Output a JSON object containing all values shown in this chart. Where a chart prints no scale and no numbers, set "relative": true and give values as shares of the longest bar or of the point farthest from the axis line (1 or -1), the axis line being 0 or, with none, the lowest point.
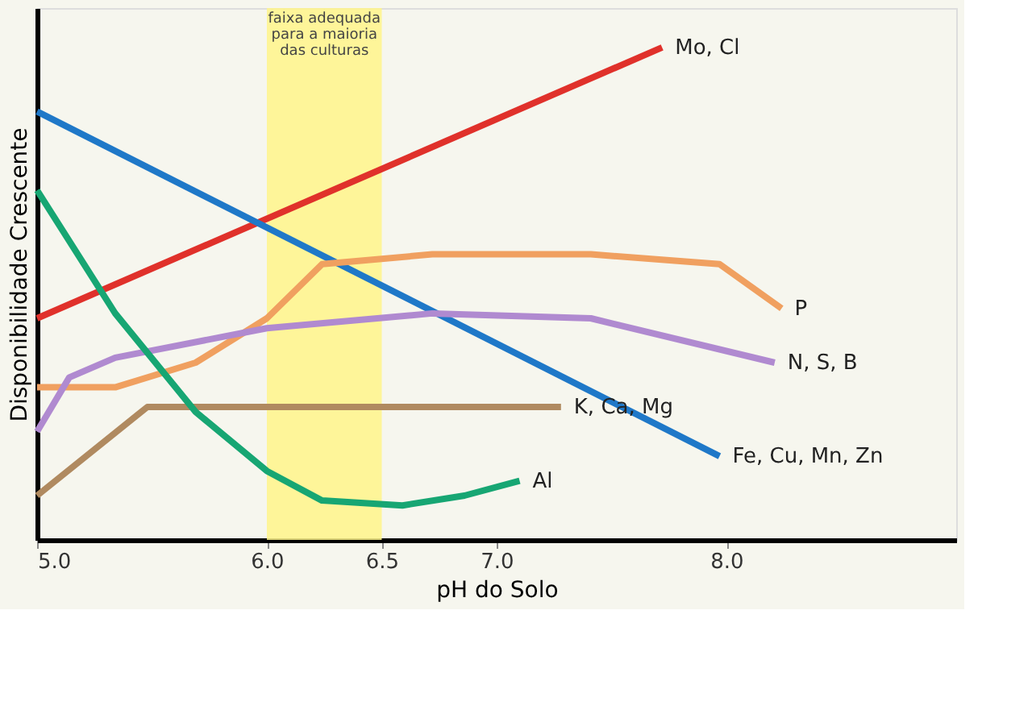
{
  "chart_data": {
    "type": "line",
    "relative": true,
    "xlabel": "pH do Solo",
    "ylabel": "Disponibilidade Crescente",
    "xlim": [
      5.0,
      9.0
    ],
    "xticks": [
      {
        "value": 5,
        "label": "5.0"
      },
      {
        "value": 6,
        "label": "6.0"
      },
      {
        "value": 6.5,
        "label": "6.5"
      },
      {
        "value": 7,
        "label": "7.0"
      },
      {
        "value": 8,
        "label": "8.0"
      }
    ],
    "tick_labels": "x",
    "grid": false,
    "marker": "none",
    "line_style": "solid",
    "bands": [
      {
        "axis": "x",
        "from": 6.0,
        "to": 6.5,
        "label": "faixa adequada para a maioria das culturas",
        "color": "#fff48a"
      }
    ],
    "series": [
      {
        "name": "Mo, Cl",
        "color": "#e0312b",
        "x": [
          5.0,
          7.72
        ],
        "values": [
          0.45,
          1.0
        ]
      },
      {
        "name": "Fe, Cu, Mn, Zn",
        "color": "#1f78c8",
        "x": [
          5.0,
          7.97
        ],
        "values": [
          0.87,
          0.17
        ]
      },
      {
        "name": "P",
        "color": "#f0a060",
        "x": [
          5.0,
          5.34,
          5.69,
          6.0,
          6.24,
          6.72,
          7.41,
          7.97,
          8.24
        ],
        "values": [
          0.31,
          0.31,
          0.36,
          0.45,
          0.56,
          0.58,
          0.58,
          0.56,
          0.47
        ]
      },
      {
        "name": "N, S, B",
        "color": "#b08ad0",
        "x": [
          5.0,
          5.14,
          5.34,
          6.0,
          6.72,
          7.41,
          8.21
        ],
        "values": [
          0.22,
          0.33,
          0.37,
          0.43,
          0.46,
          0.45,
          0.36
        ]
      },
      {
        "name": "K, Ca, Mg",
        "color": "#b08a60",
        "x": [
          5.0,
          5.48,
          7.28
        ],
        "values": [
          0.09,
          0.27,
          0.27
        ]
      },
      {
        "name": "Al",
        "color": "#17a673",
        "x": [
          5.0,
          5.34,
          5.69,
          6.0,
          6.24,
          6.59,
          6.86,
          7.1
        ],
        "values": [
          0.71,
          0.46,
          0.26,
          0.14,
          0.08,
          0.07,
          0.09,
          0.12
        ]
      }
    ]
  }
}
